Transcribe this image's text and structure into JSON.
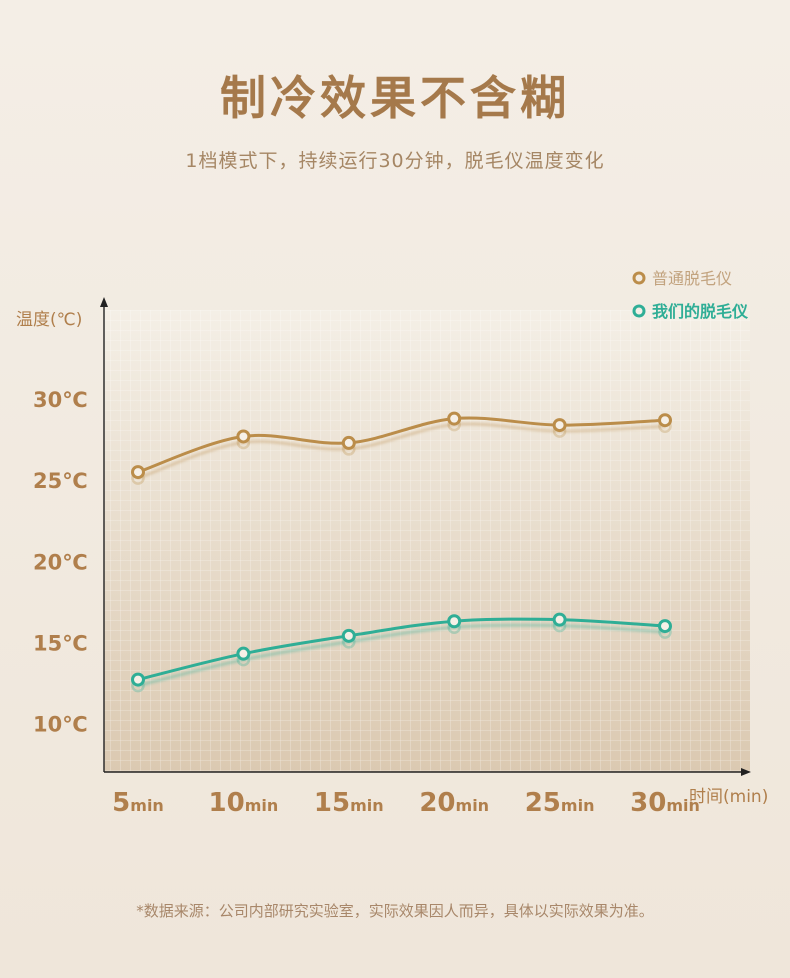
{
  "header": {
    "title": "制冷效果不含糊",
    "subtitle": "1档模式下，持续运行30分钟，脱毛仪温度变化"
  },
  "footnote": "*数据来源：公司内部研究实验室，实际效果因人而异，具体以实际效果为准。",
  "colors": {
    "title": "#a5794b",
    "axis_label": "#b07f4c",
    "series_normal": "#bb8d4a",
    "series_ours": "#2fae96"
  },
  "chart_data": {
    "type": "line",
    "ylabel": "温度(℃)",
    "xlabel": "时间(min)",
    "ylim": [
      7,
      35.5
    ],
    "yticks": [
      {
        "value": 30,
        "label": "30℃"
      },
      {
        "value": 25,
        "label": "25℃"
      },
      {
        "value": 20,
        "label": "20℃"
      },
      {
        "value": 15,
        "label": "15℃"
      },
      {
        "value": 10,
        "label": "10℃"
      }
    ],
    "xticks": [
      {
        "value": 5,
        "num": "5",
        "unit": "min"
      },
      {
        "value": 10,
        "num": "10",
        "unit": "min"
      },
      {
        "value": 15,
        "num": "15",
        "unit": "min"
      },
      {
        "value": 20,
        "num": "20",
        "unit": "min"
      },
      {
        "value": 25,
        "num": "25",
        "unit": "min"
      },
      {
        "value": 30,
        "num": "30",
        "unit": "min"
      }
    ],
    "x": [
      5,
      10,
      15,
      20,
      25,
      30
    ],
    "series": [
      {
        "name": "普通脱毛仪",
        "color": "#bb8d4a",
        "values": [
          25.5,
          27.7,
          27.3,
          28.8,
          28.4,
          28.7
        ]
      },
      {
        "name": "我们的脱毛仪",
        "color": "#2fae96",
        "values": [
          12.7,
          14.3,
          15.4,
          16.3,
          16.4,
          16.0
        ]
      }
    ],
    "grid": true,
    "legend": "top-right"
  }
}
